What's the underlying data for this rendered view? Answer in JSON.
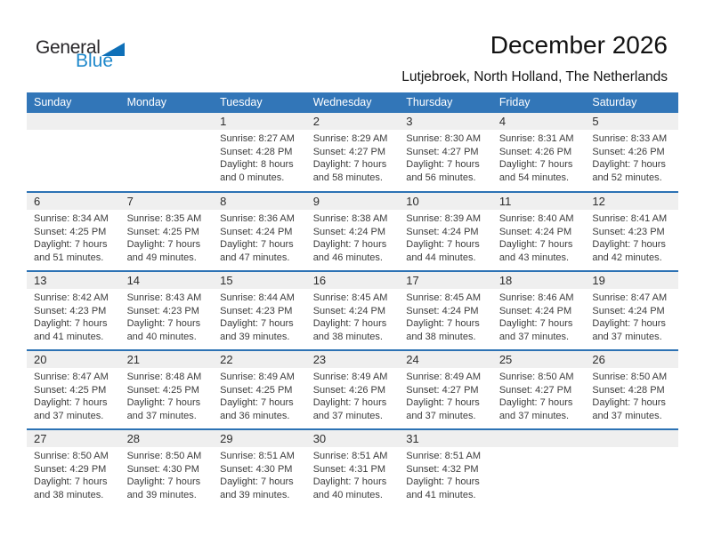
{
  "header": {
    "logo_general": "General",
    "logo_blue": "Blue",
    "title": "December 2026",
    "subtitle": "Lutjebroek, North Holland, The Netherlands"
  },
  "colors": {
    "header_bar_blue": "#3276b8",
    "divider_blue": "#2c72b4",
    "day_band_gray": "#efefef",
    "logo_blue": "#1e88cb",
    "logo_triangle_blue": "#0f70b8"
  },
  "calendar": {
    "day_headers": [
      "Sunday",
      "Monday",
      "Tuesday",
      "Wednesday",
      "Thursday",
      "Friday",
      "Saturday"
    ],
    "weeks": [
      [
        null,
        null,
        {
          "day": "1",
          "sunrise": "Sunrise: 8:27 AM",
          "sunset": "Sunset: 4:28 PM",
          "daylight": "Daylight: 8 hours and 0 minutes."
        },
        {
          "day": "2",
          "sunrise": "Sunrise: 8:29 AM",
          "sunset": "Sunset: 4:27 PM",
          "daylight": "Daylight: 7 hours and 58 minutes."
        },
        {
          "day": "3",
          "sunrise": "Sunrise: 8:30 AM",
          "sunset": "Sunset: 4:27 PM",
          "daylight": "Daylight: 7 hours and 56 minutes."
        },
        {
          "day": "4",
          "sunrise": "Sunrise: 8:31 AM",
          "sunset": "Sunset: 4:26 PM",
          "daylight": "Daylight: 7 hours and 54 minutes."
        },
        {
          "day": "5",
          "sunrise": "Sunrise: 8:33 AM",
          "sunset": "Sunset: 4:26 PM",
          "daylight": "Daylight: 7 hours and 52 minutes."
        }
      ],
      [
        {
          "day": "6",
          "sunrise": "Sunrise: 8:34 AM",
          "sunset": "Sunset: 4:25 PM",
          "daylight": "Daylight: 7 hours and 51 minutes."
        },
        {
          "day": "7",
          "sunrise": "Sunrise: 8:35 AM",
          "sunset": "Sunset: 4:25 PM",
          "daylight": "Daylight: 7 hours and 49 minutes."
        },
        {
          "day": "8",
          "sunrise": "Sunrise: 8:36 AM",
          "sunset": "Sunset: 4:24 PM",
          "daylight": "Daylight: 7 hours and 47 minutes."
        },
        {
          "day": "9",
          "sunrise": "Sunrise: 8:38 AM",
          "sunset": "Sunset: 4:24 PM",
          "daylight": "Daylight: 7 hours and 46 minutes."
        },
        {
          "day": "10",
          "sunrise": "Sunrise: 8:39 AM",
          "sunset": "Sunset: 4:24 PM",
          "daylight": "Daylight: 7 hours and 44 minutes."
        },
        {
          "day": "11",
          "sunrise": "Sunrise: 8:40 AM",
          "sunset": "Sunset: 4:24 PM",
          "daylight": "Daylight: 7 hours and 43 minutes."
        },
        {
          "day": "12",
          "sunrise": "Sunrise: 8:41 AM",
          "sunset": "Sunset: 4:23 PM",
          "daylight": "Daylight: 7 hours and 42 minutes."
        }
      ],
      [
        {
          "day": "13",
          "sunrise": "Sunrise: 8:42 AM",
          "sunset": "Sunset: 4:23 PM",
          "daylight": "Daylight: 7 hours and 41 minutes."
        },
        {
          "day": "14",
          "sunrise": "Sunrise: 8:43 AM",
          "sunset": "Sunset: 4:23 PM",
          "daylight": "Daylight: 7 hours and 40 minutes."
        },
        {
          "day": "15",
          "sunrise": "Sunrise: 8:44 AM",
          "sunset": "Sunset: 4:23 PM",
          "daylight": "Daylight: 7 hours and 39 minutes."
        },
        {
          "day": "16",
          "sunrise": "Sunrise: 8:45 AM",
          "sunset": "Sunset: 4:24 PM",
          "daylight": "Daylight: 7 hours and 38 minutes."
        },
        {
          "day": "17",
          "sunrise": "Sunrise: 8:45 AM",
          "sunset": "Sunset: 4:24 PM",
          "daylight": "Daylight: 7 hours and 38 minutes."
        },
        {
          "day": "18",
          "sunrise": "Sunrise: 8:46 AM",
          "sunset": "Sunset: 4:24 PM",
          "daylight": "Daylight: 7 hours and 37 minutes."
        },
        {
          "day": "19",
          "sunrise": "Sunrise: 8:47 AM",
          "sunset": "Sunset: 4:24 PM",
          "daylight": "Daylight: 7 hours and 37 minutes."
        }
      ],
      [
        {
          "day": "20",
          "sunrise": "Sunrise: 8:47 AM",
          "sunset": "Sunset: 4:25 PM",
          "daylight": "Daylight: 7 hours and 37 minutes."
        },
        {
          "day": "21",
          "sunrise": "Sunrise: 8:48 AM",
          "sunset": "Sunset: 4:25 PM",
          "daylight": "Daylight: 7 hours and 37 minutes."
        },
        {
          "day": "22",
          "sunrise": "Sunrise: 8:49 AM",
          "sunset": "Sunset: 4:25 PM",
          "daylight": "Daylight: 7 hours and 36 minutes."
        },
        {
          "day": "23",
          "sunrise": "Sunrise: 8:49 AM",
          "sunset": "Sunset: 4:26 PM",
          "daylight": "Daylight: 7 hours and 37 minutes."
        },
        {
          "day": "24",
          "sunrise": "Sunrise: 8:49 AM",
          "sunset": "Sunset: 4:27 PM",
          "daylight": "Daylight: 7 hours and 37 minutes."
        },
        {
          "day": "25",
          "sunrise": "Sunrise: 8:50 AM",
          "sunset": "Sunset: 4:27 PM",
          "daylight": "Daylight: 7 hours and 37 minutes."
        },
        {
          "day": "26",
          "sunrise": "Sunrise: 8:50 AM",
          "sunset": "Sunset: 4:28 PM",
          "daylight": "Daylight: 7 hours and 37 minutes."
        }
      ],
      [
        {
          "day": "27",
          "sunrise": "Sunrise: 8:50 AM",
          "sunset": "Sunset: 4:29 PM",
          "daylight": "Daylight: 7 hours and 38 minutes."
        },
        {
          "day": "28",
          "sunrise": "Sunrise: 8:50 AM",
          "sunset": "Sunset: 4:30 PM",
          "daylight": "Daylight: 7 hours and 39 minutes."
        },
        {
          "day": "29",
          "sunrise": "Sunrise: 8:51 AM",
          "sunset": "Sunset: 4:30 PM",
          "daylight": "Daylight: 7 hours and 39 minutes."
        },
        {
          "day": "30",
          "sunrise": "Sunrise: 8:51 AM",
          "sunset": "Sunset: 4:31 PM",
          "daylight": "Daylight: 7 hours and 40 minutes."
        },
        {
          "day": "31",
          "sunrise": "Sunrise: 8:51 AM",
          "sunset": "Sunset: 4:32 PM",
          "daylight": "Daylight: 7 hours and 41 minutes."
        },
        null,
        null
      ]
    ]
  }
}
